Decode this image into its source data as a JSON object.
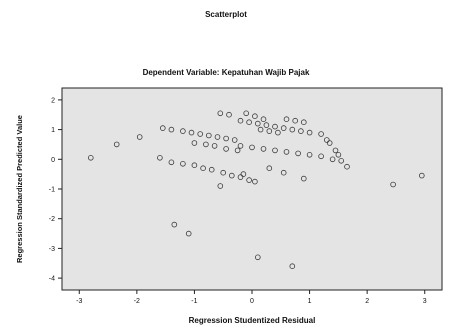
{
  "chart_data": {
    "type": "scatter",
    "title": "Scatterplot",
    "subtitle": "Dependent Variable: Kepatuhan Wajib Pajak",
    "xlabel": "Regression Studentized Residual",
    "ylabel": "Regression Standardized Predicted Value",
    "xlim": [
      -3.3,
      3.3
    ],
    "ylim": [
      -4.4,
      2.4
    ],
    "xticks": [
      -3,
      -2,
      -1,
      0,
      1,
      2,
      3
    ],
    "yticks": [
      -4,
      -3,
      -2,
      -1,
      0,
      1,
      2
    ],
    "grid": false,
    "legend": "none",
    "colors": {
      "plot_background": "#e4e4e4",
      "marker_stroke": "#3a3a3a",
      "axis": "#222222",
      "text": "#111111"
    },
    "marker": "open-circle",
    "points": [
      [
        -2.8,
        0.05
      ],
      [
        -2.35,
        0.5
      ],
      [
        -1.95,
        0.75
      ],
      [
        -1.55,
        1.05
      ],
      [
        -1.4,
        1.0
      ],
      [
        -1.2,
        0.95
      ],
      [
        -1.05,
        0.9
      ],
      [
        -0.9,
        0.85
      ],
      [
        -0.75,
        0.8
      ],
      [
        -0.6,
        0.75
      ],
      [
        -0.45,
        0.7
      ],
      [
        -0.3,
        0.65
      ],
      [
        -0.2,
        1.3
      ],
      [
        -0.05,
        1.25
      ],
      [
        0.1,
        1.2
      ],
      [
        0.25,
        1.15
      ],
      [
        0.4,
        1.1
      ],
      [
        0.55,
        1.05
      ],
      [
        0.7,
        1.0
      ],
      [
        0.85,
        0.95
      ],
      [
        1.0,
        0.9
      ],
      [
        -0.55,
        1.55
      ],
      [
        -0.4,
        1.5
      ],
      [
        0.6,
        1.35
      ],
      [
        0.75,
        1.3
      ],
      [
        0.9,
        1.25
      ],
      [
        -1.6,
        0.05
      ],
      [
        -1.4,
        -0.1
      ],
      [
        -1.2,
        -0.15
      ],
      [
        -1.0,
        -0.2
      ],
      [
        -0.85,
        -0.3
      ],
      [
        -0.7,
        -0.35
      ],
      [
        -0.5,
        -0.45
      ],
      [
        -0.35,
        -0.55
      ],
      [
        -0.2,
        -0.6
      ],
      [
        -0.05,
        -0.7
      ],
      [
        0.05,
        -0.75
      ],
      [
        -0.2,
        0.45
      ],
      [
        0.0,
        0.4
      ],
      [
        0.2,
        0.35
      ],
      [
        0.4,
        0.3
      ],
      [
        0.6,
        0.25
      ],
      [
        0.8,
        0.2
      ],
      [
        1.0,
        0.15
      ],
      [
        1.2,
        0.1
      ],
      [
        1.4,
        0.0
      ],
      [
        -1.0,
        0.55
      ],
      [
        -0.8,
        0.5
      ],
      [
        -0.65,
        0.45
      ],
      [
        -0.45,
        0.35
      ],
      [
        -0.25,
        0.3
      ],
      [
        0.15,
        1.0
      ],
      [
        0.3,
        0.95
      ],
      [
        0.45,
        0.9
      ],
      [
        1.2,
        0.85
      ],
      [
        1.3,
        0.65
      ],
      [
        1.35,
        0.55
      ],
      [
        1.45,
        0.3
      ],
      [
        1.5,
        0.15
      ],
      [
        1.55,
        -0.05
      ],
      [
        1.65,
        -0.25
      ],
      [
        -0.1,
        1.55
      ],
      [
        0.05,
        1.45
      ],
      [
        0.2,
        1.35
      ],
      [
        0.3,
        -0.3
      ],
      [
        0.55,
        -0.45
      ],
      [
        0.9,
        -0.65
      ],
      [
        -0.55,
        -0.9
      ],
      [
        -0.15,
        -0.5
      ],
      [
        2.45,
        -0.85
      ],
      [
        2.95,
        -0.55
      ],
      [
        -1.35,
        -2.2
      ],
      [
        -1.1,
        -2.5
      ],
      [
        0.1,
        -3.3
      ],
      [
        0.7,
        -3.6
      ]
    ]
  }
}
